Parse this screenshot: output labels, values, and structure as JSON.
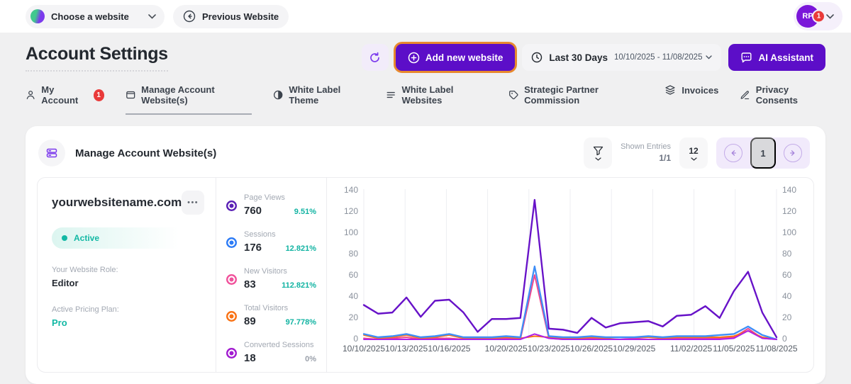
{
  "topbar": {
    "website_selector_label": "Choose a website",
    "previous_website_label": "Previous Website",
    "user_initials": "RP",
    "user_badge": "1"
  },
  "header": {
    "title": "Account Settings",
    "add_website_label": "Add new website",
    "date_range_label": "Last 30 Days",
    "date_range_value": "10/10/2025 - 11/08/2025",
    "ai_assistant_label": "AI Assistant",
    "highlight_color": "#E8892E",
    "primary_color": "#5C0EC8"
  },
  "tabs": [
    {
      "label": "My Account",
      "icon": "person-icon",
      "badge": "1",
      "active": false
    },
    {
      "label": "Manage Account Website(s)",
      "icon": "browser-icon",
      "active": true
    },
    {
      "label": "White Label Theme",
      "icon": "contrast-icon",
      "active": false
    },
    {
      "label": "White Label Websites",
      "icon": "lines-icon",
      "active": false
    },
    {
      "label": "Strategic Partner Commission",
      "icon": "tag-icon",
      "active": false
    },
    {
      "label": "Invoices",
      "icon": "layers-icon",
      "active": false
    },
    {
      "label": "Privacy Consents",
      "icon": "pen-icon",
      "active": false
    }
  ],
  "panel": {
    "title": "Manage Account Website(s)",
    "shown_entries_label": "Shown Entries",
    "shown_entries_value": "1/1",
    "page_size": "12",
    "current_page": "1"
  },
  "website": {
    "name": "yourwebsitename.com",
    "status": "Active",
    "status_color": "#12B8A4",
    "role_label": "Your Website Role:",
    "role_value": "Editor",
    "plan_label": "Active Pricing Plan:",
    "plan_value": "Pro",
    "more_glyph": "•••"
  },
  "stats": [
    {
      "label": "Page Views",
      "value": "760",
      "percent": "9.51%",
      "color": "#5B21B6",
      "percent_muted": false
    },
    {
      "label": "Sessions",
      "value": "176",
      "percent": "12.821%",
      "color": "#2E7CF6",
      "percent_muted": false
    },
    {
      "label": "New Visitors",
      "value": "83",
      "percent": "112.821%",
      "color": "#F0539C",
      "percent_muted": false
    },
    {
      "label": "Total Visitors",
      "value": "89",
      "percent": "97.778%",
      "color": "#F97316",
      "percent_muted": false
    },
    {
      "label": "Converted Sessions",
      "value": "18",
      "percent": "0%",
      "color": "#A21CD0",
      "percent_muted": true
    }
  ],
  "chart_data": {
    "type": "line",
    "days": 30,
    "ylim": [
      0,
      140
    ],
    "yticks": [
      0,
      20,
      40,
      60,
      80,
      100,
      120,
      140
    ],
    "grid_vertical_lines": 11,
    "legend": "none",
    "x_labels": [
      "10/10/2025",
      "10/13/2025",
      "10/16/2025",
      "10/20/2025",
      "10/23/2025",
      "10/26/2025",
      "10/29/2025",
      "11/02/2025",
      "11/05/2025",
      "11/08/2025"
    ],
    "x_label_days": [
      0,
      3,
      6,
      10,
      13,
      16,
      19,
      23,
      26,
      29
    ],
    "series": [
      {
        "name": "New Visitors",
        "color": "#F0448C",
        "width": 2,
        "values": [
          1,
          0,
          1,
          2,
          0,
          1,
          1,
          0,
          0,
          1,
          1,
          0,
          60,
          1,
          0,
          0,
          1,
          0,
          0,
          1,
          0,
          0,
          1,
          1,
          1,
          1,
          2,
          10,
          1,
          0
        ]
      },
      {
        "name": "Total Visitors",
        "color": "#F97316",
        "width": 2,
        "values": [
          4,
          1,
          2,
          4,
          1,
          2,
          4,
          1,
          1,
          1,
          2,
          1,
          3,
          2,
          1,
          1,
          2,
          1,
          2,
          2,
          2,
          1,
          2,
          2,
          2,
          2,
          3,
          8,
          2,
          0
        ]
      },
      {
        "name": "Sessions",
        "color": "#3E8EF7",
        "width": 2.4,
        "values": [
          5,
          2,
          3,
          5,
          2,
          3,
          5,
          2,
          2,
          2,
          3,
          2,
          68,
          3,
          2,
          2,
          3,
          2,
          2,
          2,
          3,
          2,
          3,
          3,
          3,
          4,
          5,
          12,
          4,
          0
        ]
      },
      {
        "name": "Converted Sessions",
        "color": "#B01EE8",
        "width": 2,
        "values": [
          0,
          0,
          0,
          0,
          0,
          0,
          0,
          0,
          0,
          0,
          0,
          0,
          5,
          1,
          0,
          0,
          0,
          0,
          0,
          0,
          0,
          0,
          0,
          0,
          0,
          0,
          1,
          8,
          1,
          0
        ]
      },
      {
        "name": "Page Views",
        "color": "#6712C8",
        "width": 2.5,
        "values": [
          32,
          24,
          25,
          39,
          21,
          36,
          37,
          25,
          7,
          19,
          19,
          20,
          130,
          10,
          9,
          6,
          20,
          11,
          15,
          16,
          17,
          12,
          22,
          23,
          31,
          20,
          45,
          63,
          25,
          2
        ]
      }
    ]
  }
}
